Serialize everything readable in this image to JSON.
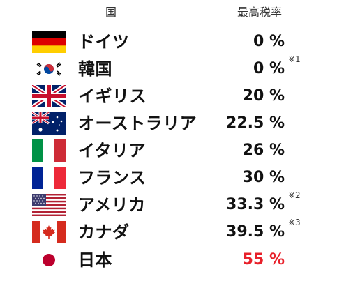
{
  "header": {
    "country": "国",
    "rate": "最高税率"
  },
  "rows": [
    {
      "flag": "germany-flag-icon",
      "name": "ドイツ",
      "rate": "0 %",
      "note": ""
    },
    {
      "flag": "south-korea-flag-icon",
      "name": "韓国",
      "rate": "0 %",
      "note": "※1"
    },
    {
      "flag": "uk-flag-icon",
      "name": "イギリス",
      "rate": "20 %",
      "note": ""
    },
    {
      "flag": "australia-flag-icon",
      "name": "オーストラリア",
      "rate": "22.5 %",
      "note": ""
    },
    {
      "flag": "italy-flag-icon",
      "name": "イタリア",
      "rate": "26 %",
      "note": ""
    },
    {
      "flag": "france-flag-icon",
      "name": "フランス",
      "rate": "30 %",
      "note": ""
    },
    {
      "flag": "usa-flag-icon",
      "name": "アメリカ",
      "rate": "33.3 %",
      "note": "※2"
    },
    {
      "flag": "canada-flag-icon",
      "name": "カナダ",
      "rate": "39.5 %",
      "note": "※3"
    },
    {
      "flag": "japan-flag-icon",
      "name": "日本",
      "rate": "55 %",
      "note": ""
    }
  ],
  "colors": {
    "highlight": "#e8202a"
  }
}
